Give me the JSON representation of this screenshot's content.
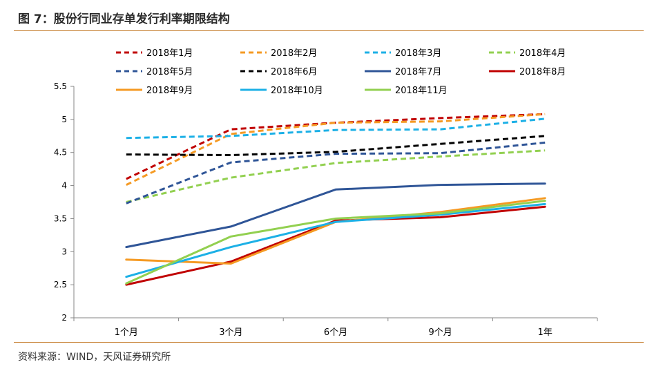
{
  "figure": {
    "title": "图 7：股份行同业存单发行利率期限结构",
    "source": "资料来源：WIND，天风证券研究所"
  },
  "chart_data": {
    "type": "line",
    "categories": [
      "1个月",
      "3个月",
      "6个月",
      "9个月",
      "1年"
    ],
    "ylim": [
      2,
      5.5
    ],
    "yticks": [
      2,
      2.5,
      3,
      3.5,
      4,
      4.5,
      5,
      5.5
    ],
    "ytick_labels": [
      "2",
      "2.5",
      "3",
      "3.5",
      "4",
      "4.5",
      "5",
      "5.5"
    ],
    "grid": false,
    "legend_position": "top",
    "series": [
      {
        "name": "2018年1月",
        "color": "#c00000",
        "style": "dashed",
        "values": [
          4.1,
          4.85,
          4.95,
          5.02,
          5.08
        ]
      },
      {
        "name": "2018年2月",
        "color": "#f59a23",
        "style": "dashed",
        "values": [
          4.01,
          4.78,
          4.95,
          4.97,
          5.08
        ]
      },
      {
        "name": "2018年3月",
        "color": "#1cb0e6",
        "style": "dashed",
        "values": [
          4.72,
          4.75,
          4.84,
          4.85,
          5.01
        ]
      },
      {
        "name": "2018年4月",
        "color": "#92d050",
        "style": "dashed",
        "values": [
          3.75,
          4.12,
          4.34,
          4.44,
          4.53
        ]
      },
      {
        "name": "2018年5月",
        "color": "#2f5597",
        "style": "dashed",
        "values": [
          3.73,
          4.35,
          4.48,
          4.49,
          4.65
        ]
      },
      {
        "name": "2018年6月",
        "color": "#000000",
        "style": "dashed",
        "values": [
          4.47,
          4.46,
          4.51,
          4.63,
          4.75
        ]
      },
      {
        "name": "2018年7月",
        "color": "#2f5597",
        "style": "solid",
        "values": [
          3.07,
          3.38,
          3.94,
          4.01,
          4.03
        ]
      },
      {
        "name": "2018年8月",
        "color": "#c00000",
        "style": "solid",
        "values": [
          2.5,
          2.85,
          3.47,
          3.52,
          3.68
        ]
      },
      {
        "name": "2018年9月",
        "color": "#f59a23",
        "style": "solid",
        "values": [
          2.88,
          2.82,
          3.45,
          3.6,
          3.81
        ]
      },
      {
        "name": "2018年10月",
        "color": "#1cb0e6",
        "style": "solid",
        "values": [
          2.62,
          3.07,
          3.45,
          3.56,
          3.72
        ]
      },
      {
        "name": "2018年11月",
        "color": "#92d050",
        "style": "solid",
        "values": [
          2.52,
          3.23,
          3.5,
          3.58,
          3.77
        ]
      }
    ]
  }
}
